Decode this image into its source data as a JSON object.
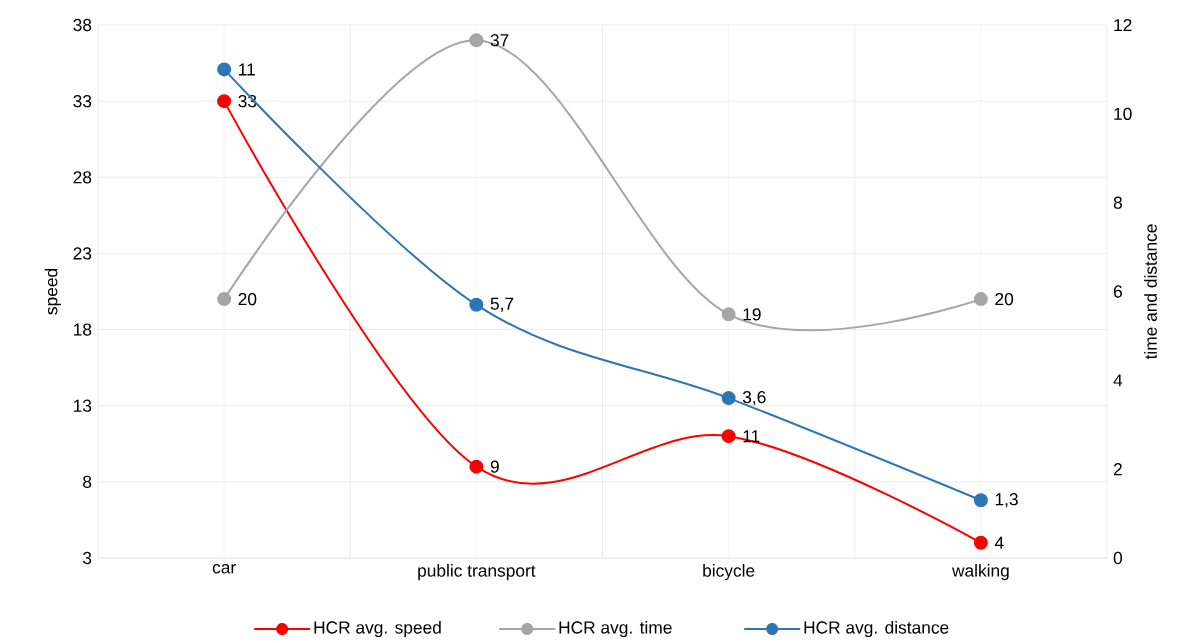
{
  "chart_data": {
    "type": "line",
    "categories": [
      "car",
      "public transport",
      "bicycle",
      "walking"
    ],
    "ylabel": "speed",
    "y2label": "time and distance",
    "ylim": [
      3,
      38
    ],
    "yticks": [
      3,
      8,
      13,
      18,
      23,
      28,
      33,
      38
    ],
    "y2lim": [
      0,
      12
    ],
    "y2ticks": [
      0,
      2,
      4,
      6,
      8,
      10,
      12
    ],
    "series": [
      {
        "name": "HCR avg. speed",
        "color": "#ff0000",
        "values": [
          33,
          9,
          11,
          4
        ],
        "value_labels": [
          "33",
          "9",
          "11",
          "4"
        ]
      },
      {
        "name": "HCR avg. time",
        "color": "#a5a5a5",
        "values": [
          20,
          37,
          19,
          20
        ],
        "value_labels": [
          "20",
          "37",
          "19",
          "20"
        ]
      },
      {
        "name": "HCR avg. distance",
        "color": "#2e75b6",
        "axis": "y2",
        "values": [
          11,
          5.7,
          3.6,
          1.3
        ],
        "value_labels": [
          "11",
          "5,7",
          "3,6",
          "1,3"
        ]
      }
    ],
    "grid": true,
    "legend": "bottom",
    "marker": "circle",
    "line_style": "solid"
  }
}
